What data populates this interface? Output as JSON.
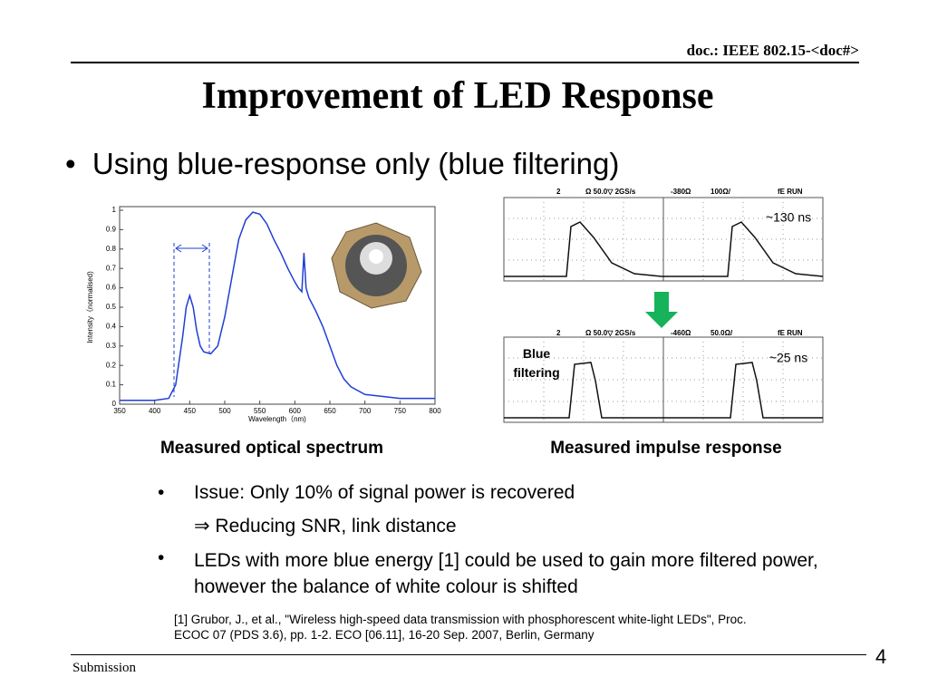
{
  "header": {
    "doc": "doc.: IEEE 802.15-<doc#>",
    "title": "Improvement of LED Response"
  },
  "bullet": "Using blue-response only (blue filtering)",
  "chart_data": {
    "type": "line",
    "xlabel": "Wavelength（nm)",
    "ylabel": "Intensity（normalised)",
    "x": [
      350,
      400,
      420,
      430,
      440,
      445,
      450,
      455,
      460,
      465,
      470,
      480,
      490,
      500,
      510,
      520,
      530,
      540,
      550,
      560,
      570,
      580,
      590,
      600,
      605,
      610,
      613,
      616,
      620,
      630,
      640,
      650,
      660,
      670,
      680,
      700,
      750,
      800
    ],
    "series": [
      {
        "name": "spectrum",
        "color": "#1f3fd6",
        "values": [
          0.02,
          0.02,
          0.03,
          0.1,
          0.35,
          0.5,
          0.56,
          0.5,
          0.38,
          0.3,
          0.27,
          0.26,
          0.3,
          0.45,
          0.65,
          0.85,
          0.95,
          0.99,
          0.98,
          0.93,
          0.85,
          0.78,
          0.7,
          0.63,
          0.6,
          0.58,
          0.78,
          0.6,
          0.55,
          0.48,
          0.4,
          0.3,
          0.2,
          0.13,
          0.09,
          0.05,
          0.03,
          0.03
        ]
      }
    ],
    "xlim": [
      350,
      800
    ],
    "ylim": [
      0,
      1
    ],
    "xticks": [
      350,
      400,
      450,
      500,
      550,
      600,
      650,
      700,
      750,
      800
    ],
    "yticks": [
      0,
      0.1,
      0.2,
      0.3,
      0.4,
      0.5,
      0.6,
      0.7,
      0.8,
      0.9,
      1
    ]
  },
  "captions": {
    "spectrum": "Measured optical spectrum",
    "impulse": "Measured impulse response"
  },
  "scope": {
    "top": {
      "header": [
        "2",
        "Ω 50.0▽ 2GS/s",
        "-380Ω",
        "100Ω/",
        "fE RUN"
      ],
      "note": "~130 ns"
    },
    "bottom": {
      "header": [
        "2",
        "Ω 50.0▽ 2GS/s",
        "-460Ω",
        "50.0Ω/",
        "fE RUN"
      ],
      "note": "~25 ns",
      "label": "Blue filtering"
    }
  },
  "points": [
    "Issue: Only 10% of signal power is recovered",
    "⇒ Reducing SNR, link distance",
    "LEDs with more blue energy [1] could be used to gain more filtered power, however the balance of white colour is shifted"
  ],
  "reference": "[1] Grubor, J., et al., \"Wireless high-speed data transmission with phosphorescent white-light LEDs\", Proc. ECOC 07 (PDS 3.6), pp. 1-2. ECO [06.11], 16-20 Sep. 2007, Berlin, Germany",
  "footer": {
    "left": "Submission",
    "page": "4"
  }
}
